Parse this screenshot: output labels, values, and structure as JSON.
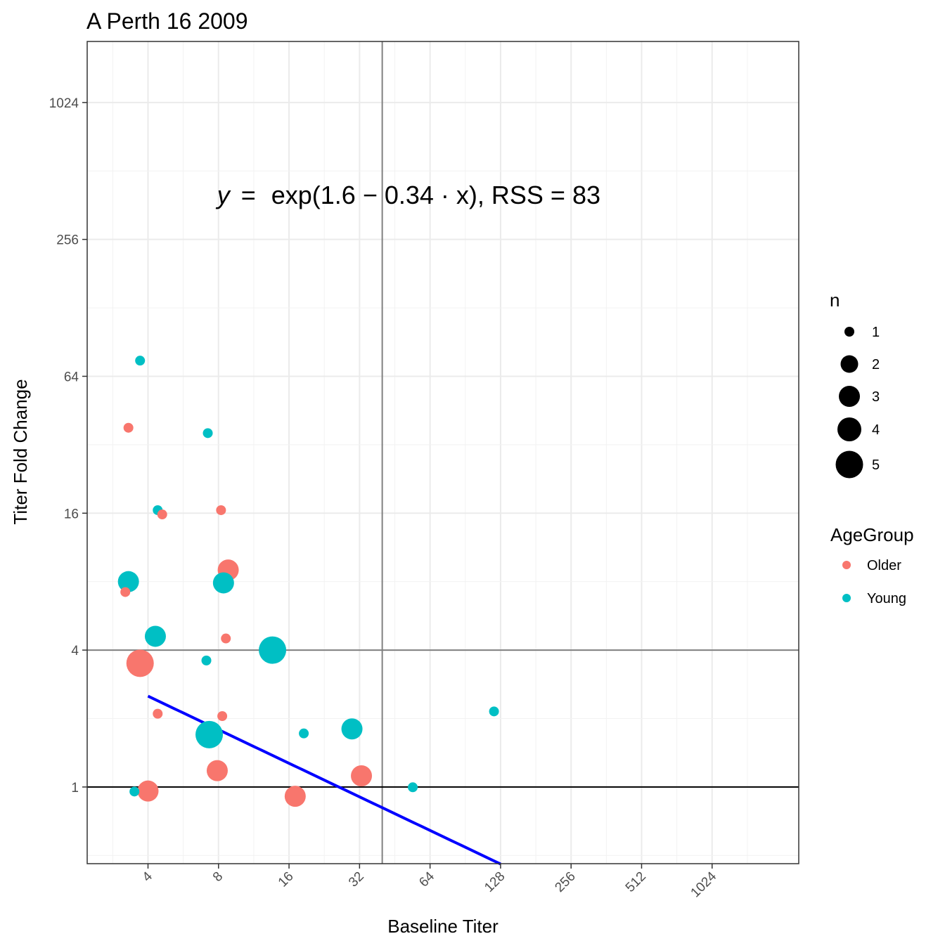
{
  "chart_data": {
    "type": "scatter",
    "title": "A Perth 16 2009",
    "xlabel": "Baseline Titer",
    "ylabel": "Titer Fold Change",
    "x_scale": "log2",
    "y_scale": "log2",
    "xlim": [
      2.2,
      2400
    ],
    "ylim": [
      0.46,
      1900
    ],
    "x_ticks": [
      4,
      8,
      16,
      32,
      64,
      128,
      256,
      512,
      1024
    ],
    "x_tick_labels": [
      "4",
      "8",
      "16",
      "32",
      "64",
      "128",
      "256",
      "512",
      "1024"
    ],
    "y_ticks": [
      1,
      4,
      16,
      64,
      256,
      1024
    ],
    "y_tick_labels": [
      "1",
      "4",
      "16",
      "64",
      "256",
      "1024"
    ],
    "grid": true,
    "reference_lines": {
      "vertical_x": 40,
      "horizontal_y_grey": 4,
      "horizontal_y_black": 1
    },
    "annotation": {
      "lhs": "y",
      "eq": "=",
      "rhs": "exp(1.6 − 0.34 · x), RSS = 83",
      "x": 32,
      "y": 400
    },
    "fit_curve": {
      "color": "#0000ff",
      "x_from": 4,
      "x_to": 128,
      "intercept": 1.6,
      "slope": -0.34,
      "note_x_transform": "log2"
    },
    "colors": {
      "Older": "#F8766D",
      "Young": "#00BFC4"
    },
    "size_legend": {
      "title": "n",
      "entries": [
        1,
        2,
        3,
        4,
        5
      ]
    },
    "color_legend": {
      "title": "AgeGroup",
      "entries": [
        "Older",
        "Young"
      ]
    },
    "legend_position": "right",
    "points": [
      {
        "x": 3.7,
        "y": 75,
        "n": 1,
        "group": "Young"
      },
      {
        "x": 3.3,
        "y": 38,
        "n": 1,
        "group": "Older"
      },
      {
        "x": 7.2,
        "y": 36,
        "n": 1,
        "group": "Young"
      },
      {
        "x": 4.4,
        "y": 16.5,
        "n": 1,
        "group": "Young"
      },
      {
        "x": 4.6,
        "y": 15.8,
        "n": 1,
        "group": "Older"
      },
      {
        "x": 8.2,
        "y": 16.5,
        "n": 1,
        "group": "Older"
      },
      {
        "x": 3.3,
        "y": 8.0,
        "n": 3,
        "group": "Young"
      },
      {
        "x": 3.2,
        "y": 7.2,
        "n": 1,
        "group": "Older"
      },
      {
        "x": 8.8,
        "y": 9.0,
        "n": 3,
        "group": "Older"
      },
      {
        "x": 8.4,
        "y": 7.9,
        "n": 3,
        "group": "Young"
      },
      {
        "x": 4.3,
        "y": 4.6,
        "n": 3,
        "group": "Young"
      },
      {
        "x": 8.6,
        "y": 4.5,
        "n": 1,
        "group": "Older"
      },
      {
        "x": 13.6,
        "y": 4.0,
        "n": 5,
        "group": "Young"
      },
      {
        "x": 3.7,
        "y": 3.5,
        "n": 5,
        "group": "Older"
      },
      {
        "x": 7.1,
        "y": 3.6,
        "n": 1,
        "group": "Young"
      },
      {
        "x": 4.4,
        "y": 2.1,
        "n": 1,
        "group": "Older"
      },
      {
        "x": 8.3,
        "y": 2.05,
        "n": 1,
        "group": "Older"
      },
      {
        "x": 7.3,
        "y": 1.7,
        "n": 5,
        "group": "Young"
      },
      {
        "x": 18.5,
        "y": 1.72,
        "n": 1,
        "group": "Young"
      },
      {
        "x": 29.7,
        "y": 1.8,
        "n": 3,
        "group": "Young"
      },
      {
        "x": 120,
        "y": 2.15,
        "n": 1,
        "group": "Young"
      },
      {
        "x": 7.9,
        "y": 1.18,
        "n": 3,
        "group": "Older"
      },
      {
        "x": 32.6,
        "y": 1.12,
        "n": 3,
        "group": "Older"
      },
      {
        "x": 4.0,
        "y": 0.96,
        "n": 3,
        "group": "Older"
      },
      {
        "x": 3.5,
        "y": 0.955,
        "n": 1,
        "group": "Young"
      },
      {
        "x": 17.0,
        "y": 0.91,
        "n": 3,
        "group": "Older"
      },
      {
        "x": 54,
        "y": 0.997,
        "n": 1,
        "group": "Young"
      }
    ]
  }
}
